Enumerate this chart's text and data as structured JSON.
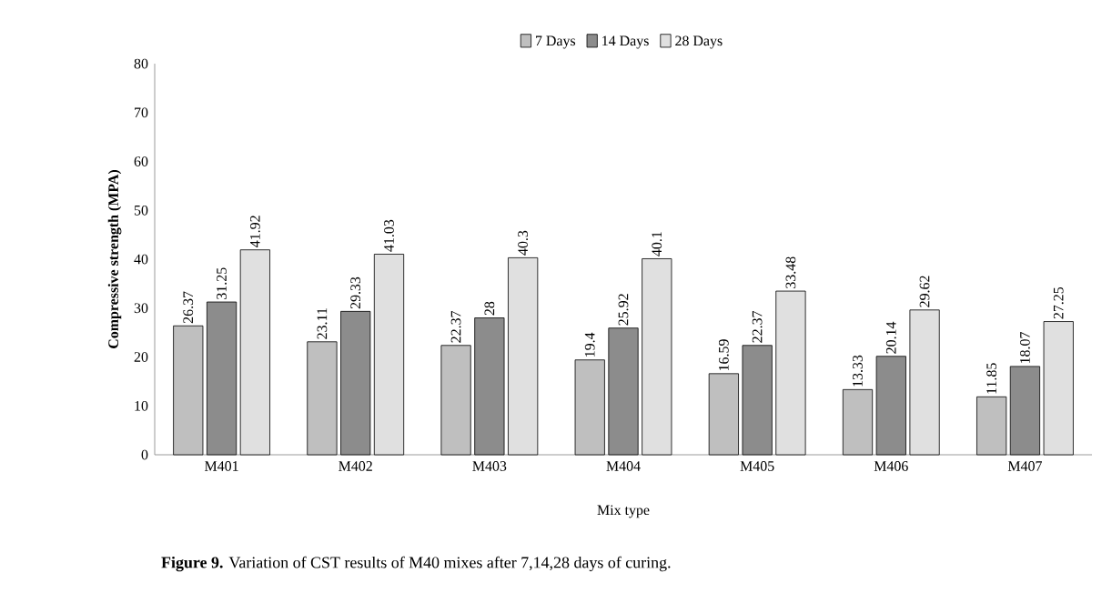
{
  "chart_data": {
    "type": "bar",
    "xlabel": "Mix type",
    "ylabel": "Compressive strength  (MPA)",
    "categories": [
      "M401",
      "M402",
      "M403",
      "M404",
      "M405",
      "M406",
      "M407"
    ],
    "series": [
      {
        "name": "7 Days",
        "color": "#bfbfbf",
        "values": [
          26.37,
          23.11,
          22.37,
          19.4,
          16.59,
          13.33,
          11.85
        ]
      },
      {
        "name": "14 Days",
        "color": "#8c8c8c",
        "values": [
          31.25,
          29.33,
          28,
          25.92,
          22.37,
          20.14,
          18.07
        ]
      },
      {
        "name": "28 Days",
        "color": "#e0e0e0",
        "values": [
          41.92,
          41.03,
          40.3,
          40.1,
          33.48,
          29.62,
          27.25
        ]
      }
    ],
    "ylim": [
      0,
      80
    ],
    "yticks": [
      0,
      10,
      20,
      30,
      40,
      50,
      60,
      70,
      80
    ],
    "data_labels": true,
    "legend": "top",
    "annotations": [
      "**Figure 9.** Variation of CST results of M40 mixes after 7,14,28 days of curing."
    ]
  }
}
